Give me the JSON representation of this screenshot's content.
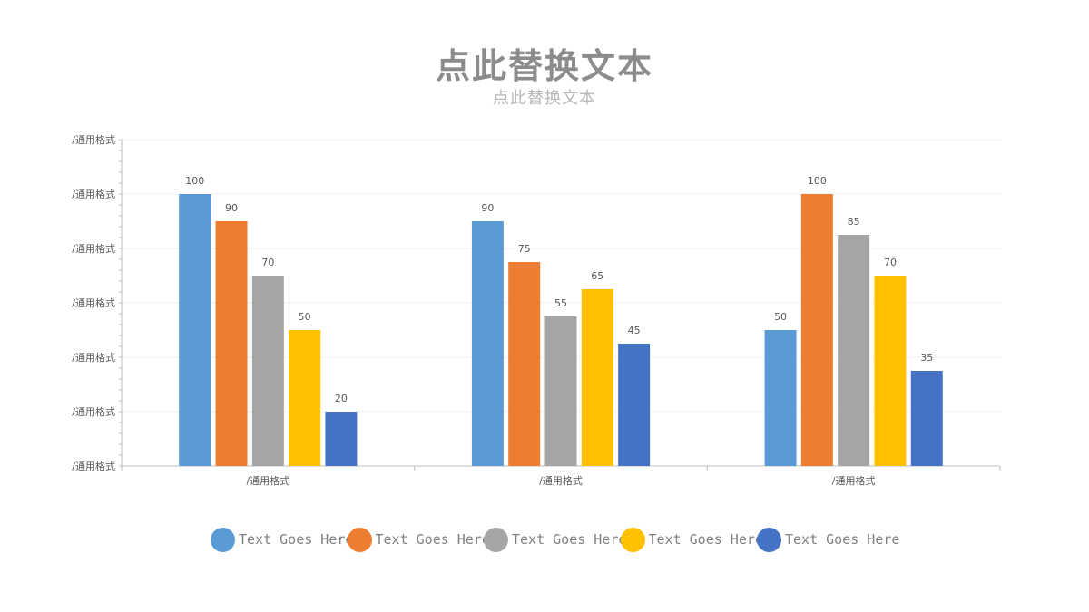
{
  "colors": {
    "series": [
      "#5b9bd5",
      "#ed7d31",
      "#a5a5a5",
      "#ffc000",
      "#4472c4"
    ],
    "gridline": "#f0f0f0",
    "axis": "#bfbfbf"
  },
  "chart_data": {
    "type": "bar",
    "title": "点此替换文本",
    "subtitle": "点此替换文本",
    "xlabel": "",
    "ylabel": "",
    "ylim": [
      0,
      120
    ],
    "y_tick_labels": [
      "/通用格式",
      "/通用格式",
      "/通用格式",
      "/通用格式",
      "/通用格式",
      "/通用格式",
      "/通用格式"
    ],
    "categories": [
      "/通用格式",
      "/通用格式",
      "/通用格式"
    ],
    "grid": true,
    "legend_position": "bottom",
    "series": [
      {
        "name": "Text Goes Here",
        "values": [
          100,
          90,
          50
        ]
      },
      {
        "name": "Text Goes Here",
        "values": [
          90,
          75,
          100
        ]
      },
      {
        "name": "Text Goes Here",
        "values": [
          70,
          55,
          85
        ]
      },
      {
        "name": "Text Goes Here",
        "values": [
          50,
          65,
          70
        ]
      },
      {
        "name": "Text Goes Here",
        "values": [
          20,
          45,
          35
        ]
      }
    ]
  }
}
